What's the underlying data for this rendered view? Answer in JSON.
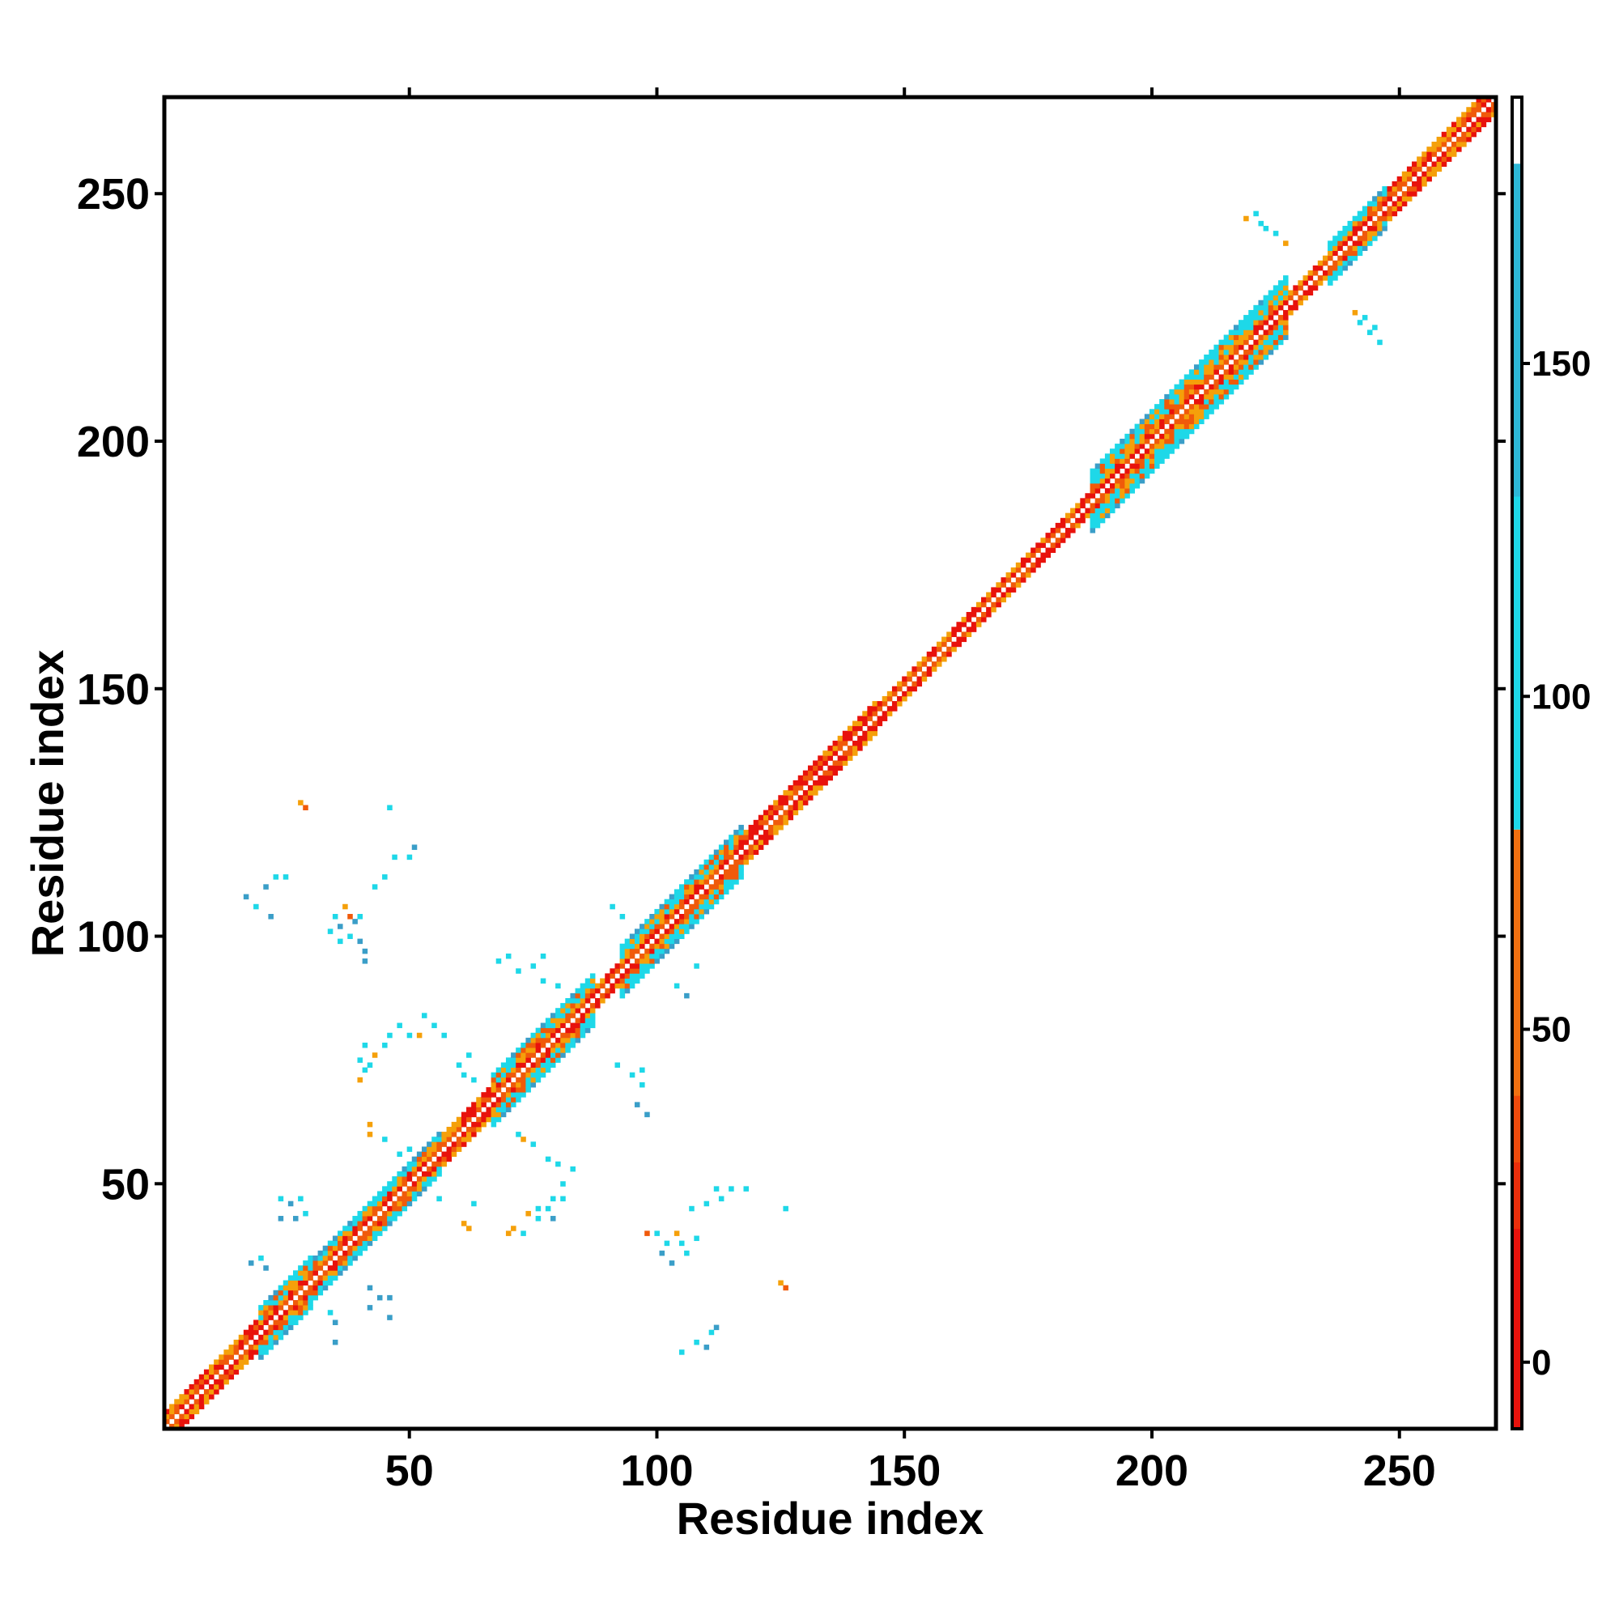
{
  "chart_data": {
    "type": "heatmap",
    "title": "",
    "xlabel": "Residue index",
    "ylabel": "Residue index",
    "xlim": [
      1,
      269
    ],
    "ylim": [
      1,
      269
    ],
    "x_ticks": [
      50,
      100,
      150,
      200,
      250
    ],
    "y_ticks": [
      50,
      100,
      150,
      200,
      250
    ],
    "colorbar": {
      "ticks": [
        0,
        50,
        100,
        150
      ],
      "range": [
        -10,
        190
      ],
      "stops": [
        {
          "from": -10,
          "to": 30,
          "color": "#e8120c"
        },
        {
          "from": 30,
          "to": 80,
          "color": "#f07010"
        },
        {
          "from": 80,
          "to": 180,
          "color": "#1ed8e8"
        },
        {
          "from": 180,
          "to": 190,
          "color": "#ffffff"
        }
      ]
    },
    "palette": {
      "red": "#e8120c",
      "orange_red": "#f05a0a",
      "orange": "#f5a00a",
      "cyan": "#1ed8e8",
      "steel_blue": "#3a9ec8"
    },
    "diagonal_band": {
      "segments": [
        {
          "start": 1,
          "end": 20,
          "half_width": 3
        },
        {
          "start": 20,
          "end": 31,
          "half_width": 5
        },
        {
          "start": 31,
          "end": 57,
          "half_width": 4
        },
        {
          "start": 57,
          "end": 67,
          "half_width": 3
        },
        {
          "start": 67,
          "end": 88,
          "half_width": 5
        },
        {
          "start": 88,
          "end": 93,
          "half_width": 2
        },
        {
          "start": 93,
          "end": 118,
          "half_width": 5
        },
        {
          "start": 118,
          "end": 145,
          "half_width": 3
        },
        {
          "start": 145,
          "end": 188,
          "half_width": 2
        },
        {
          "start": 188,
          "end": 228,
          "half_width": 6
        },
        {
          "start": 228,
          "end": 236,
          "half_width": 2
        },
        {
          "start": 236,
          "end": 248,
          "half_width": 4
        },
        {
          "start": 248,
          "end": 269,
          "half_width": 3
        }
      ]
    },
    "offdiagonal_contacts": [
      {
        "x": 17,
        "y": 108,
        "c": "steel_blue"
      },
      {
        "x": 19,
        "y": 106,
        "c": "cyan"
      },
      {
        "x": 21,
        "y": 110,
        "c": "steel_blue"
      },
      {
        "x": 23,
        "y": 112,
        "c": "cyan"
      },
      {
        "x": 25,
        "y": 112,
        "c": "cyan"
      },
      {
        "x": 22,
        "y": 104,
        "c": "steel_blue"
      },
      {
        "x": 29,
        "y": 126,
        "c": "orange_red"
      },
      {
        "x": 28,
        "y": 127,
        "c": "orange"
      },
      {
        "x": 35,
        "y": 104,
        "c": "cyan"
      },
      {
        "x": 36,
        "y": 102,
        "c": "steel_blue"
      },
      {
        "x": 37,
        "y": 106,
        "c": "orange"
      },
      {
        "x": 38,
        "y": 100,
        "c": "cyan"
      },
      {
        "x": 39,
        "y": 103,
        "c": "steel_blue"
      },
      {
        "x": 40,
        "y": 99,
        "c": "steel_blue"
      },
      {
        "x": 41,
        "y": 97,
        "c": "steel_blue"
      },
      {
        "x": 38,
        "y": 104,
        "c": "orange_red"
      },
      {
        "x": 40,
        "y": 104,
        "c": "cyan"
      },
      {
        "x": 34,
        "y": 101,
        "c": "cyan"
      },
      {
        "x": 36,
        "y": 99,
        "c": "cyan"
      },
      {
        "x": 41,
        "y": 95,
        "c": "steel_blue"
      },
      {
        "x": 43,
        "y": 110,
        "c": "cyan"
      },
      {
        "x": 45,
        "y": 112,
        "c": "cyan"
      },
      {
        "x": 47,
        "y": 116,
        "c": "cyan"
      },
      {
        "x": 50,
        "y": 116,
        "c": "cyan"
      },
      {
        "x": 51,
        "y": 118,
        "c": "steel_blue"
      },
      {
        "x": 46,
        "y": 126,
        "c": "cyan"
      },
      {
        "x": 41,
        "y": 78,
        "c": "cyan"
      },
      {
        "x": 43,
        "y": 76,
        "c": "orange"
      },
      {
        "x": 45,
        "y": 78,
        "c": "cyan"
      },
      {
        "x": 40,
        "y": 75,
        "c": "cyan"
      },
      {
        "x": 42,
        "y": 74,
        "c": "cyan"
      },
      {
        "x": 46,
        "y": 80,
        "c": "cyan"
      },
      {
        "x": 48,
        "y": 82,
        "c": "cyan"
      },
      {
        "x": 50,
        "y": 80,
        "c": "cyan"
      },
      {
        "x": 53,
        "y": 84,
        "c": "cyan"
      },
      {
        "x": 55,
        "y": 82,
        "c": "cyan"
      },
      {
        "x": 57,
        "y": 80,
        "c": "cyan"
      },
      {
        "x": 52,
        "y": 80,
        "c": "orange"
      },
      {
        "x": 40,
        "y": 71,
        "c": "orange"
      },
      {
        "x": 41,
        "y": 73,
        "c": "cyan"
      },
      {
        "x": 60,
        "y": 74,
        "c": "cyan"
      },
      {
        "x": 61,
        "y": 72,
        "c": "cyan"
      },
      {
        "x": 62,
        "y": 76,
        "c": "cyan"
      },
      {
        "x": 63,
        "y": 71,
        "c": "cyan"
      },
      {
        "x": 42,
        "y": 60,
        "c": "orange"
      },
      {
        "x": 42,
        "y": 62,
        "c": "orange"
      },
      {
        "x": 45,
        "y": 59,
        "c": "cyan"
      },
      {
        "x": 48,
        "y": 56,
        "c": "cyan"
      },
      {
        "x": 50,
        "y": 57,
        "c": "cyan"
      },
      {
        "x": 24,
        "y": 47,
        "c": "cyan"
      },
      {
        "x": 26,
        "y": 46,
        "c": "steel_blue"
      },
      {
        "x": 28,
        "y": 47,
        "c": "cyan"
      },
      {
        "x": 24,
        "y": 43,
        "c": "steel_blue"
      },
      {
        "x": 27,
        "y": 43,
        "c": "steel_blue"
      },
      {
        "x": 29,
        "y": 44,
        "c": "cyan"
      },
      {
        "x": 18,
        "y": 34,
        "c": "steel_blue"
      },
      {
        "x": 20,
        "y": 35,
        "c": "cyan"
      },
      {
        "x": 21,
        "y": 33,
        "c": "steel_blue"
      },
      {
        "x": 34,
        "y": 24,
        "c": "cyan"
      },
      {
        "x": 35,
        "y": 22,
        "c": "steel_blue"
      },
      {
        "x": 35,
        "y": 18,
        "c": "steel_blue"
      },
      {
        "x": 42,
        "y": 29,
        "c": "steel_blue"
      },
      {
        "x": 44,
        "y": 27,
        "c": "steel_blue"
      },
      {
        "x": 46,
        "y": 27,
        "c": "steel_blue"
      },
      {
        "x": 46,
        "y": 23,
        "c": "steel_blue"
      },
      {
        "x": 42,
        "y": 25,
        "c": "steel_blue"
      },
      {
        "x": 56,
        "y": 47,
        "c": "cyan"
      },
      {
        "x": 61,
        "y": 42,
        "c": "orange"
      },
      {
        "x": 62,
        "y": 41,
        "c": "orange"
      },
      {
        "x": 63,
        "y": 46,
        "c": "cyan"
      },
      {
        "x": 70,
        "y": 40,
        "c": "orange"
      },
      {
        "x": 71,
        "y": 41,
        "c": "orange"
      },
      {
        "x": 73,
        "y": 40,
        "c": "cyan"
      },
      {
        "x": 74,
        "y": 44,
        "c": "orange"
      },
      {
        "x": 76,
        "y": 45,
        "c": "cyan"
      },
      {
        "x": 78,
        "y": 45,
        "c": "cyan"
      },
      {
        "x": 76,
        "y": 43,
        "c": "cyan"
      },
      {
        "x": 79,
        "y": 43,
        "c": "steel_blue"
      },
      {
        "x": 79,
        "y": 47,
        "c": "cyan"
      },
      {
        "x": 81,
        "y": 47,
        "c": "cyan"
      },
      {
        "x": 81,
        "y": 50,
        "c": "cyan"
      },
      {
        "x": 83,
        "y": 53,
        "c": "cyan"
      },
      {
        "x": 78,
        "y": 55,
        "c": "cyan"
      },
      {
        "x": 80,
        "y": 54,
        "c": "cyan"
      },
      {
        "x": 75,
        "y": 58,
        "c": "cyan"
      },
      {
        "x": 72,
        "y": 60,
        "c": "cyan"
      },
      {
        "x": 73,
        "y": 59,
        "c": "orange"
      },
      {
        "x": 68,
        "y": 95,
        "c": "cyan"
      },
      {
        "x": 70,
        "y": 96,
        "c": "cyan"
      },
      {
        "x": 72,
        "y": 93,
        "c": "cyan"
      },
      {
        "x": 75,
        "y": 94,
        "c": "cyan"
      },
      {
        "x": 77,
        "y": 96,
        "c": "cyan"
      },
      {
        "x": 80,
        "y": 90,
        "c": "cyan"
      },
      {
        "x": 77,
        "y": 91,
        "c": "cyan"
      },
      {
        "x": 92,
        "y": 74,
        "c": "cyan"
      },
      {
        "x": 95,
        "y": 72,
        "c": "cyan"
      },
      {
        "x": 97,
        "y": 70,
        "c": "cyan"
      },
      {
        "x": 96,
        "y": 66,
        "c": "steel_blue"
      },
      {
        "x": 98,
        "y": 64,
        "c": "steel_blue"
      },
      {
        "x": 97,
        "y": 73,
        "c": "cyan"
      },
      {
        "x": 98,
        "y": 40,
        "c": "orange_red"
      },
      {
        "x": 100,
        "y": 40,
        "c": "cyan"
      },
      {
        "x": 102,
        "y": 38,
        "c": "cyan"
      },
      {
        "x": 101,
        "y": 36,
        "c": "steel_blue"
      },
      {
        "x": 103,
        "y": 34,
        "c": "steel_blue"
      },
      {
        "x": 105,
        "y": 38,
        "c": "cyan"
      },
      {
        "x": 106,
        "y": 36,
        "c": "cyan"
      },
      {
        "x": 108,
        "y": 39,
        "c": "cyan"
      },
      {
        "x": 104,
        "y": 40,
        "c": "orange"
      },
      {
        "x": 107,
        "y": 45,
        "c": "cyan"
      },
      {
        "x": 110,
        "y": 46,
        "c": "cyan"
      },
      {
        "x": 113,
        "y": 47,
        "c": "cyan"
      },
      {
        "x": 115,
        "y": 49,
        "c": "cyan"
      },
      {
        "x": 118,
        "y": 49,
        "c": "cyan"
      },
      {
        "x": 112,
        "y": 49,
        "c": "cyan"
      },
      {
        "x": 126,
        "y": 45,
        "c": "cyan"
      },
      {
        "x": 126,
        "y": 29,
        "c": "orange_red"
      },
      {
        "x": 125,
        "y": 30,
        "c": "orange"
      },
      {
        "x": 105,
        "y": 16,
        "c": "cyan"
      },
      {
        "x": 108,
        "y": 18,
        "c": "cyan"
      },
      {
        "x": 110,
        "y": 17,
        "c": "steel_blue"
      },
      {
        "x": 111,
        "y": 20,
        "c": "cyan"
      },
      {
        "x": 112,
        "y": 21,
        "c": "steel_blue"
      },
      {
        "x": 104,
        "y": 90,
        "c": "cyan"
      },
      {
        "x": 106,
        "y": 88,
        "c": "steel_blue"
      },
      {
        "x": 108,
        "y": 94,
        "c": "cyan"
      },
      {
        "x": 91,
        "y": 106,
        "c": "cyan"
      },
      {
        "x": 93,
        "y": 104,
        "c": "cyan"
      },
      {
        "x": 219,
        "y": 245,
        "c": "orange"
      },
      {
        "x": 221,
        "y": 246,
        "c": "cyan"
      },
      {
        "x": 222,
        "y": 244,
        "c": "cyan"
      },
      {
        "x": 223,
        "y": 243,
        "c": "cyan"
      },
      {
        "x": 225,
        "y": 242,
        "c": "cyan"
      },
      {
        "x": 227,
        "y": 240,
        "c": "orange"
      },
      {
        "x": 241,
        "y": 226,
        "c": "orange"
      },
      {
        "x": 242,
        "y": 224,
        "c": "cyan"
      },
      {
        "x": 244,
        "y": 222,
        "c": "cyan"
      },
      {
        "x": 245,
        "y": 223,
        "c": "cyan"
      },
      {
        "x": 246,
        "y": 220,
        "c": "cyan"
      },
      {
        "x": 243,
        "y": 225,
        "c": "cyan"
      }
    ]
  }
}
